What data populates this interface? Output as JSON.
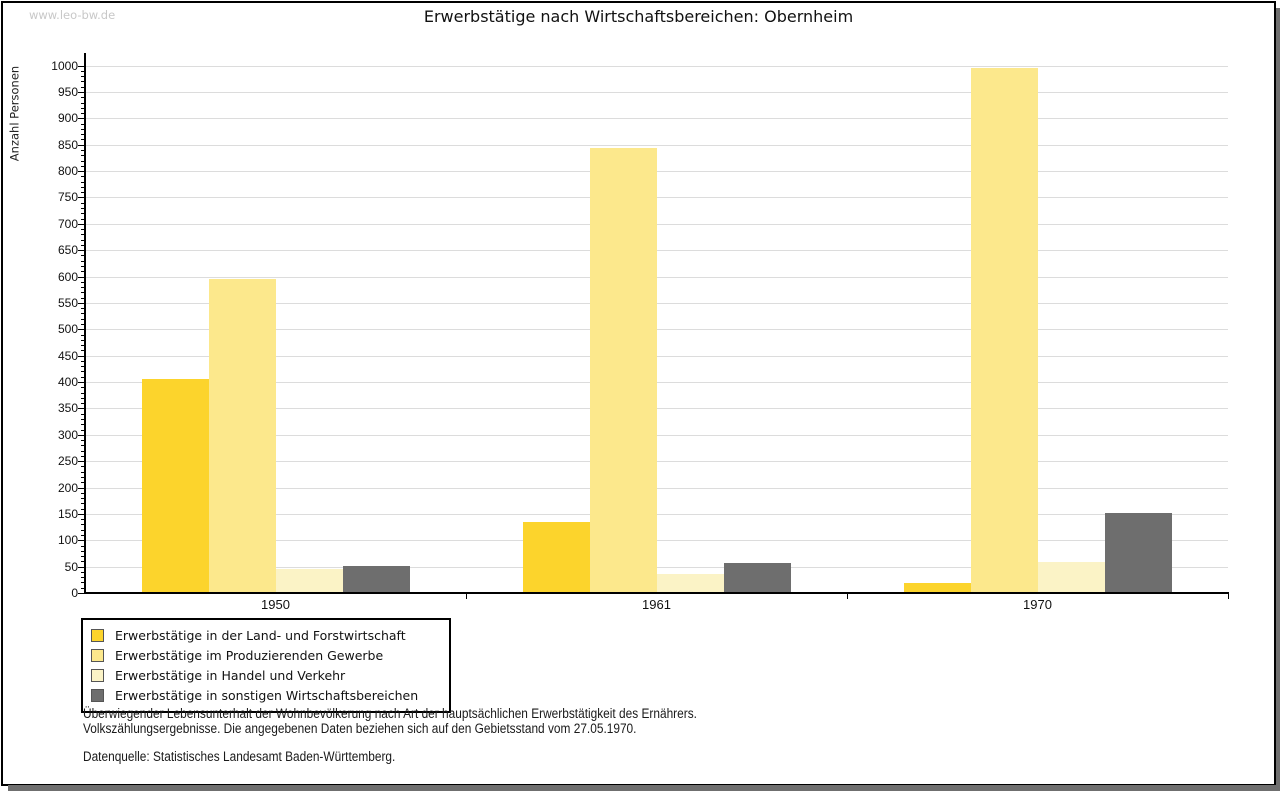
{
  "watermark": "www.leo-bw.de",
  "chart_data": {
    "type": "bar",
    "title": "Erwerbstätige nach Wirtschaftsbereichen: Obernheim",
    "ylabel": "Anzahl Personen",
    "xlabel": "",
    "categories": [
      "1950",
      "1961",
      "1970"
    ],
    "series": [
      {
        "name": "Erwerbstätige in der Land- und Forstwirtschaft",
        "color": "#FCD42C",
        "values": [
          405,
          134,
          19
        ]
      },
      {
        "name": "Erwerbstätige im Produzierenden Gewerbe",
        "color": "#FCE88C",
        "values": [
          595,
          843,
          996
        ]
      },
      {
        "name": "Erwerbstätige in Handel und Verkehr",
        "color": "#FBF3C6",
        "values": [
          45,
          36,
          58
        ]
      },
      {
        "name": "Erwerbstätige in sonstigen Wirtschaftsbereichen",
        "color": "#6E6E6E",
        "values": [
          51,
          57,
          152
        ]
      }
    ],
    "ylim": [
      0,
      1000
    ],
    "ytick_step": 50,
    "yminor_step": 10,
    "grid": true,
    "gridline_color": "#DCDCDC",
    "legend_position": "bottom-left"
  },
  "footnote": {
    "line1": "Überwiegender Lebensunterhalt der Wohnbevölkerung nach Art der hauptsächlichen Erwerbstätigkeit des Ernährers.",
    "line2": "Volkszählungsergebnisse. Die angegebenen Daten beziehen sich auf den Gebietsstand vom 27.05.1970."
  },
  "source": "Datenquelle: Statistisches Landesamt Baden-Württemberg."
}
